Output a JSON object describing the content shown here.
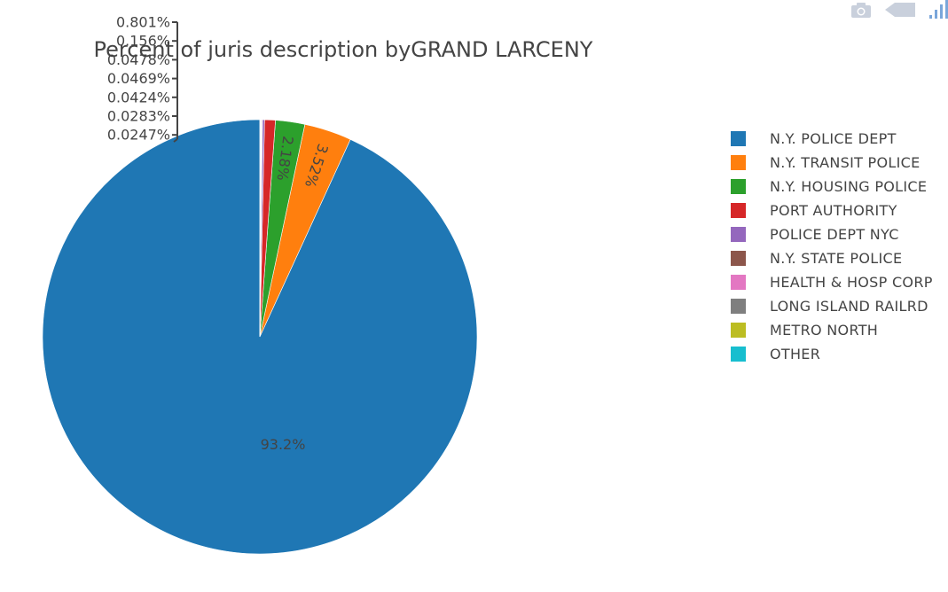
{
  "modebar": {
    "camera_icon": "camera-icon",
    "zoom_icon": "arrow-tag-icon",
    "logo_icon": "plotly-logo-icon"
  },
  "chart_data": {
    "type": "pie",
    "title": "Percent of juris description byGRAND LARCENY",
    "legend_position": "right",
    "slices": [
      {
        "label": "N.Y. POLICE DEPT",
        "value": 93.2,
        "text": "93.2%",
        "color": "#1f77b4"
      },
      {
        "label": "N.Y. TRANSIT POLICE",
        "value": 3.52,
        "text": "3.52%",
        "color": "#ff7f0e"
      },
      {
        "label": "N.Y. HOUSING POLICE",
        "value": 2.18,
        "text": "2.18%",
        "color": "#2ca02c"
      },
      {
        "label": "PORT AUTHORITY",
        "value": 0.801,
        "text": "0.801%",
        "color": "#d62728"
      },
      {
        "label": "POLICE DEPT NYC",
        "value": 0.156,
        "text": "0.156%",
        "color": "#9467bd"
      },
      {
        "label": "N.Y. STATE POLICE",
        "value": 0.0478,
        "text": "0.0478%",
        "color": "#8c564b"
      },
      {
        "label": "HEALTH & HOSP CORP",
        "value": 0.0469,
        "text": "0.0469%",
        "color": "#e377c2"
      },
      {
        "label": "LONG ISLAND RAILRD",
        "value": 0.0424,
        "text": "0.0424%",
        "color": "#7f7f7f"
      },
      {
        "label": "METRO NORTH",
        "value": 0.0283,
        "text": "0.0283%",
        "color": "#bcbd22"
      },
      {
        "label": "OTHER",
        "value": 0.0247,
        "text": "0.0247%",
        "color": "#17becf"
      }
    ]
  }
}
